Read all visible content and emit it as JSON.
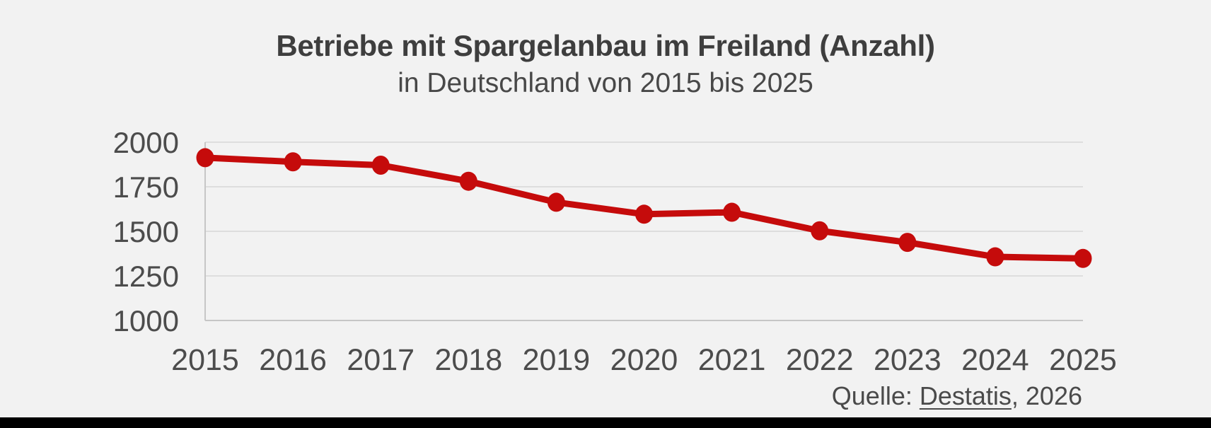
{
  "source": {
    "prefix": "Quelle: ",
    "link_label": "Destatis",
    "suffix": ", 2026"
  },
  "colors": {
    "background": "#f2f2f2",
    "accent_red": "#c50b0b",
    "grid": "#dedede",
    "axis": "#c6c6c6",
    "title_text": "#3e3e3e",
    "tick_text": "#4c4c4c",
    "bottom_bar": "#000000"
  },
  "chart_data": {
    "type": "line",
    "title": "Betriebe mit Spargelanbau im Freiland (Anzahl)",
    "subtitle": "in Deutschland von 2015 bis 2025",
    "x": [
      "2015",
      "2016",
      "2017",
      "2018",
      "2019",
      "2020",
      "2021",
      "2022",
      "2023",
      "2024",
      "2025"
    ],
    "series": [
      {
        "name": "Betriebe mit Spargelanbau im Freiland",
        "values": [
          1913,
          1890,
          1871,
          1781,
          1663,
          1596,
          1607,
          1503,
          1438,
          1357,
          1348
        ]
      }
    ],
    "xlabel": "",
    "ylabel": "",
    "ylim": [
      1000,
      2000
    ],
    "yticks": [
      1000,
      1250,
      1500,
      1750,
      2000
    ],
    "grid": "horizontal",
    "legend": "none",
    "marker": "dot"
  }
}
